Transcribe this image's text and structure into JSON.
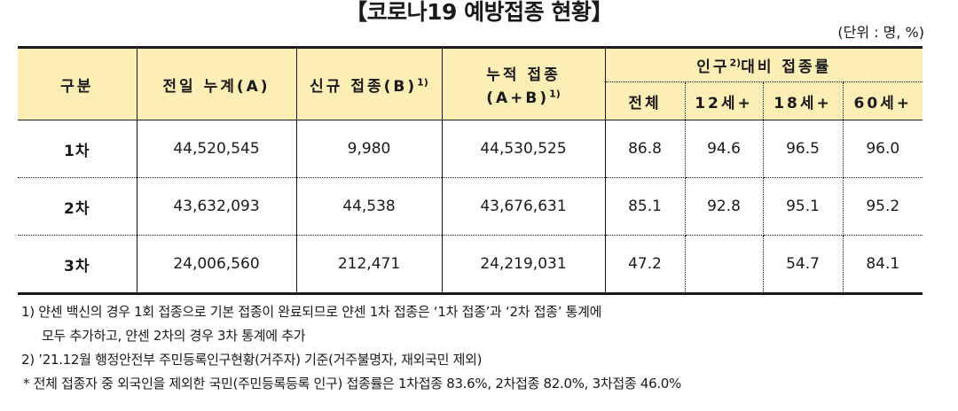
{
  "title": "【코로나19 예방접종 현황】",
  "unit": "(단위 : 명, %)",
  "headers": {
    "category": "구분",
    "prev_total": "전일 누계(A)",
    "new_label": "신규 접종(B)",
    "new_sup": "1)",
    "cumulative_line1": "누적 접종",
    "cumulative_line2": "(A+B)",
    "cumulative_sup": "1)",
    "pop_prefix": "인구",
    "pop_sup": "2)",
    "pop_suffix": "대비 접종률",
    "sub_total": "전체",
    "sub_12": "12세+",
    "sub_18": "18세+",
    "sub_60": "60세+"
  },
  "rows": [
    {
      "label": "1차",
      "prev_total": "44,520,545",
      "new": "9,980",
      "cumulative": "44,530,525",
      "total_rate": "86.8",
      "rate_12": "94.6",
      "rate_18": "96.5",
      "rate_60": "96.0"
    },
    {
      "label": "2차",
      "prev_total": "43,632,093",
      "new": "44,538",
      "cumulative": "43,676,631",
      "total_rate": "85.1",
      "rate_12": "92.8",
      "rate_18": "95.1",
      "rate_60": "95.2"
    },
    {
      "label": "3차",
      "prev_total": "24,006,560",
      "new": "212,471",
      "cumulative": "24,219,031",
      "total_rate": "47.2",
      "rate_12": "",
      "rate_18": "54.7",
      "rate_60": "84.1"
    }
  ],
  "notes": {
    "note1_line1": "1) 얀센 백신의 경우 1회 접종으로 기본 접종이 완료되므로 얀센 1차 접종은 ‘1차 접종’과 ‘2차 접종’ 통계에",
    "note1_line2": "모두 추가하고, 얀센 2차의 경우 3차 통계에 추가",
    "note2": "2) ’21.12월 행정안전부 주민등록인구현황(거주자) 기준(거주불명자, 재외국민 제외)",
    "note3": "* 전체 접종자 중 외국인을 제외한 국민(주민등록등록 인구) 접종률은 1차접종 83.6%, 2차접종 82.0%, 3차접종 46.0%"
  }
}
